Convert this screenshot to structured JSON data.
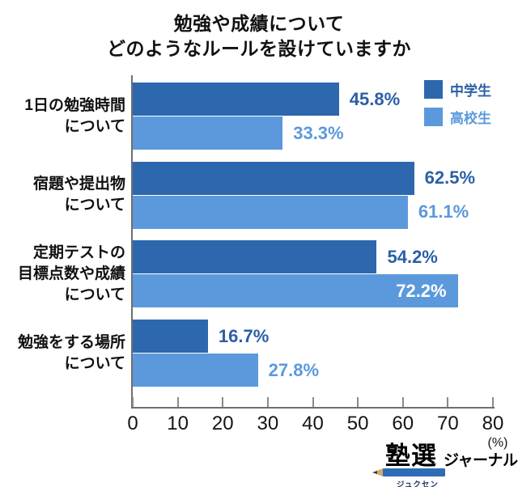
{
  "title": {
    "line1": "勉強や成績について",
    "line2": "どのようなルールを設けていますか"
  },
  "legend": {
    "items": [
      {
        "label": "中学生",
        "color": "#2d68ae",
        "text_color": "#2b5fa6"
      },
      {
        "label": "高校生",
        "color": "#5b99dc",
        "text_color": "#5b99dc"
      }
    ]
  },
  "chart_data": {
    "type": "bar",
    "orientation": "horizontal",
    "title": "勉強や成績について どのようなルールを設けていますか",
    "categories": [
      "1日の勉強時間\nについて",
      "宿題や提出物\nについて",
      "定期テストの\n目標点数や成績\nについて",
      "勉強をする場所\nについて"
    ],
    "series": [
      {
        "name": "中学生",
        "color": "#2d68ae",
        "label_color": "#2b5fa6",
        "values": [
          45.8,
          62.5,
          54.2,
          16.7
        ],
        "labels": [
          "45.8%",
          "62.5%",
          "54.2%",
          "16.7%"
        ],
        "label_placement": [
          "outside",
          "outside",
          "outside",
          "outside"
        ]
      },
      {
        "name": "高校生",
        "color": "#5b99dc",
        "label_color": "#5b99dc",
        "values": [
          33.3,
          61.1,
          72.2,
          27.8
        ],
        "labels": [
          "33.3%",
          "61.1%",
          "72.2%",
          "27.8%"
        ],
        "label_placement": [
          "outside",
          "outside",
          "inside",
          "outside"
        ]
      }
    ],
    "xlim": [
      0,
      80
    ],
    "xticks": [
      0,
      10,
      20,
      30,
      40,
      50,
      60,
      70,
      80
    ],
    "x_unit_label": "(%)",
    "grid": false,
    "legend_position": "top-right",
    "inside_label_color": "#ffffff",
    "axis_color": "#6f6f6f"
  },
  "footer_logo": {
    "kanji": "塾選",
    "furigana": "ジュクセン",
    "suffix": "ジャーナル"
  }
}
